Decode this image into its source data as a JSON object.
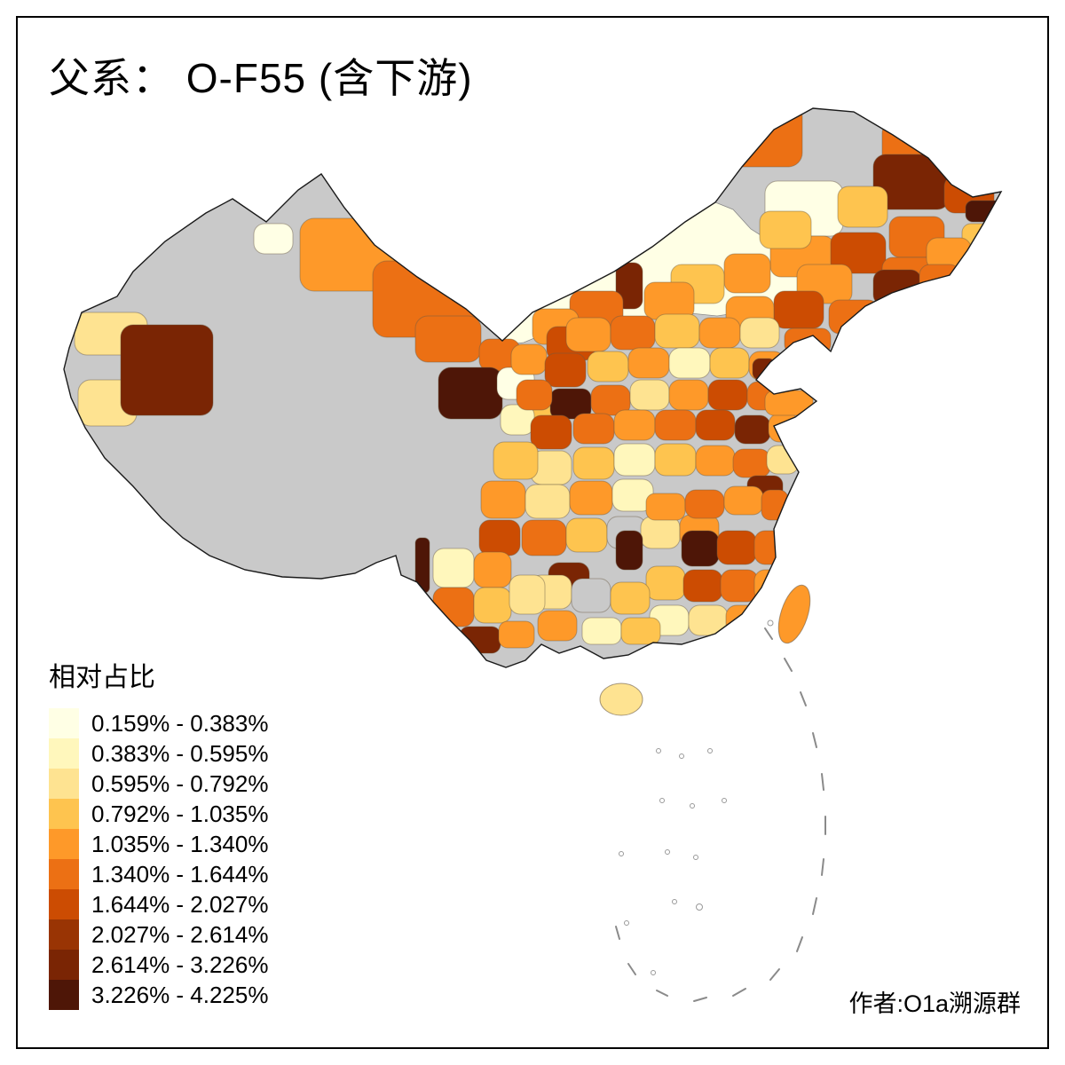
{
  "header": {
    "title": "父系： O-F55 (含下游)"
  },
  "legend": {
    "title": "相对占比",
    "items": [
      {
        "label": "0.159% - 0.383%",
        "color": "#FFFFE5"
      },
      {
        "label": "0.383% - 0.595%",
        "color": "#FFF7BC"
      },
      {
        "label": "0.595% - 0.792%",
        "color": "#FEE391"
      },
      {
        "label": "0.792% - 1.035%",
        "color": "#FEC44F"
      },
      {
        "label": "1.035% - 1.340%",
        "color": "#FE9929"
      },
      {
        "label": "1.340% - 1.644%",
        "color": "#EC7014"
      },
      {
        "label": "1.644% - 2.027%",
        "color": "#CC4C02"
      },
      {
        "label": "2.027% - 2.614%",
        "color": "#993404"
      },
      {
        "label": "2.614% - 3.226%",
        "color": "#7A2504"
      },
      {
        "label": "3.226% - 4.225%",
        "color": "#4E1607"
      }
    ]
  },
  "footer": {
    "author": "作者:O1a溯源群"
  },
  "map": {
    "missing_color": "#C9C9C9",
    "background": "#FFFFFF",
    "border_color": "#1A1A1A"
  }
}
